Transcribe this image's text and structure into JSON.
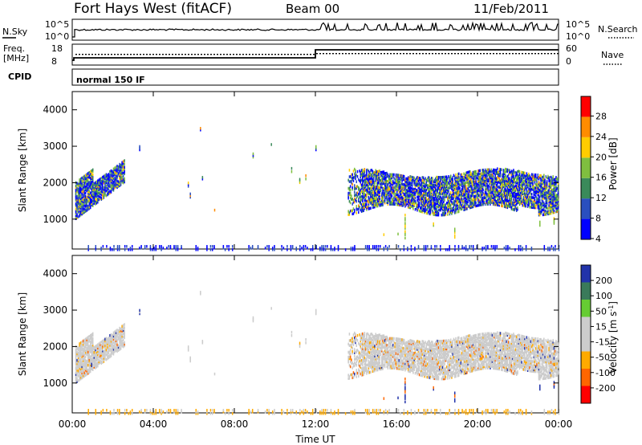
{
  "header": {
    "title": "Fort Hays West (fitACF)",
    "beam": "Beam 00",
    "date": "11/Feb/2011"
  },
  "top_panels": {
    "nsky_label": "N.Sky",
    "nsky_ticks": [
      "10^5",
      "10^0"
    ],
    "nsearch_label": "N.Search",
    "nsearch_ticks": [
      "10^5",
      "10^0"
    ],
    "freq_label_1": "Freq.",
    "freq_label_2": "[MHz]",
    "freq_ticks": [
      "18",
      "8"
    ],
    "nave_label": "Nave",
    "nave_ticks": [
      "60",
      "0"
    ],
    "cpid_label": "CPID",
    "cpid_value": "normal 150 IF"
  },
  "chart_data": [
    {
      "type": "heatmap",
      "name": "power-panel",
      "ylabel": "Slant Range [km]",
      "y_ticks": [
        "4000",
        "3000",
        "2000",
        "1000"
      ],
      "y_values": [
        4000,
        3000,
        2000,
        1000
      ],
      "ylim": [
        180,
        4500
      ],
      "xlim_hours": [
        0,
        24
      ],
      "colorbar_label": "Power [dB]",
      "colorbar_ticks": [
        "28",
        "24",
        "20",
        "16",
        "12",
        "8",
        "4"
      ],
      "colorbar_colors": [
        "#0000ff",
        "#2a4fbf",
        "#3a8a5a",
        "#7fbf3f",
        "#ffcc00",
        "#ff8c00",
        "#ff0000"
      ]
    },
    {
      "type": "heatmap",
      "name": "velocity-panel",
      "ylabel": "Slant Range [km]",
      "y_ticks": [
        "4000",
        "3000",
        "2000",
        "1000"
      ],
      "y_values": [
        4000,
        3000,
        2000,
        1000
      ],
      "ylim": [
        180,
        4500
      ],
      "xlim_hours": [
        0,
        24
      ],
      "colorbar_label_main": "Velocity [m s",
      "colorbar_label_sup": "-1",
      "colorbar_label_end": "]",
      "colorbar_ticks": [
        "200",
        "100",
        "50",
        "15",
        "-15",
        "-50",
        "-100",
        "-200"
      ],
      "colorbar_colors": [
        "#ff0000",
        "#ff6600",
        "#ffaa00",
        "#cccccc",
        "#cccccc",
        "#66cc33",
        "#3a7a5a",
        "#2233aa"
      ]
    }
  ],
  "x_axis": {
    "ticks": [
      "00:00",
      "04:00",
      "08:00",
      "12:00",
      "16:00",
      "20:00",
      "00:00"
    ],
    "label": "Time UT"
  },
  "colors": {
    "ground_scatter": "#cccccc"
  }
}
